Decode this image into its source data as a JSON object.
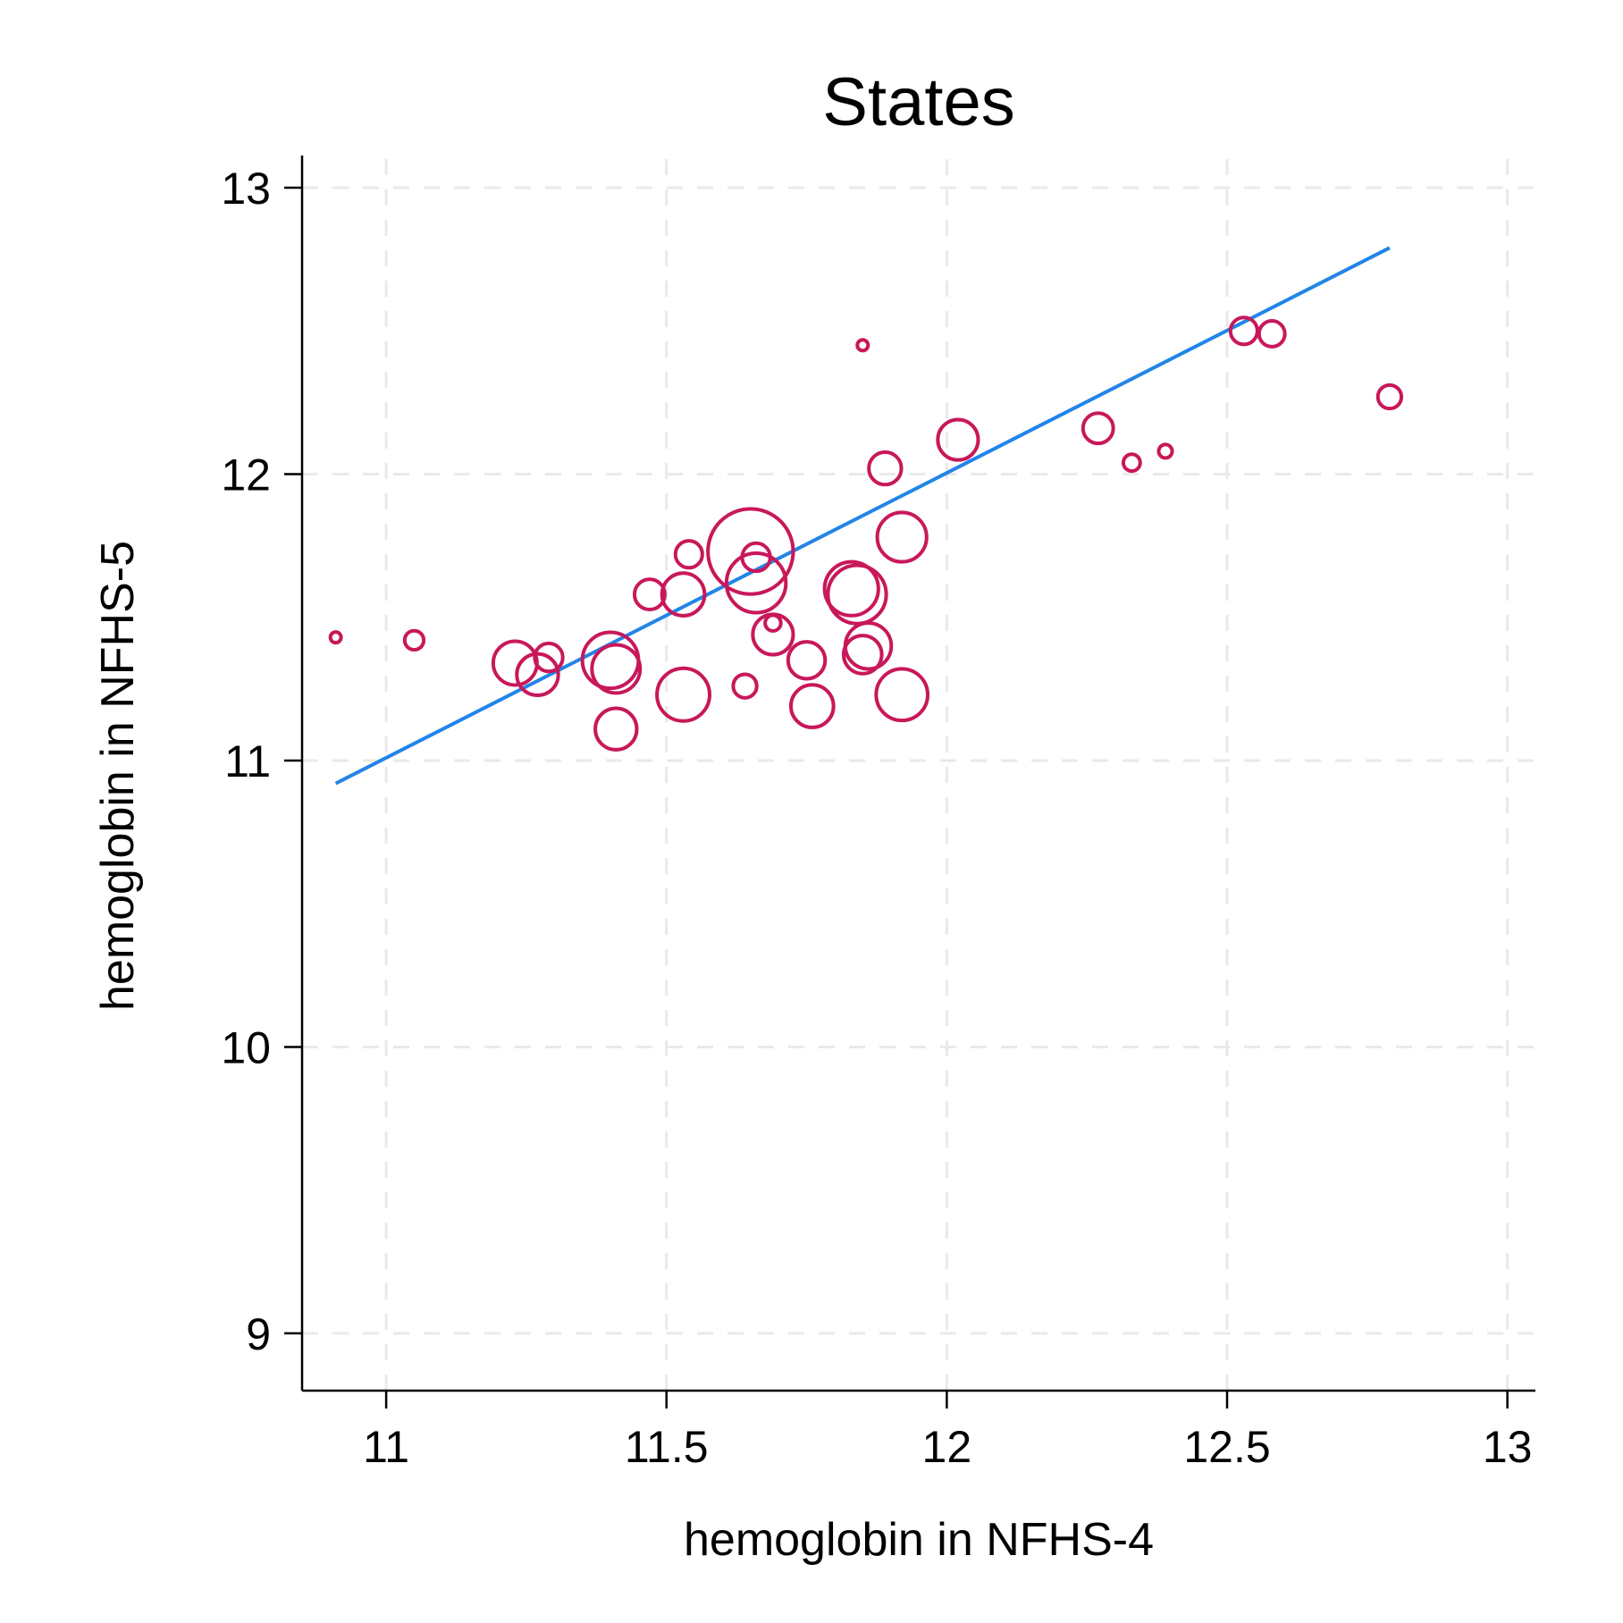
{
  "chart_data": {
    "type": "scatter",
    "title": "States",
    "xlabel": "hemoglobin in NFHS-4",
    "ylabel": "hemoglobin in NFHS-5",
    "xlim": [
      10.85,
      13.05
    ],
    "ylim": [
      8.8,
      13.1
    ],
    "xticks": [
      11,
      11.5,
      12,
      12.5,
      13
    ],
    "xtick_labels": [
      "11",
      "11.5",
      "12",
      "12.5",
      "13"
    ],
    "yticks": [
      9,
      10,
      11,
      12,
      13
    ],
    "ytick_labels": [
      "9",
      "10",
      "11",
      "12",
      "13"
    ],
    "grid": true,
    "marker": "hollow circle, size weighted",
    "colors": {
      "points": "#c8185a",
      "fit_line": "#2185e8",
      "grid": "#e9e9e9",
      "axis": "#000000"
    },
    "points": [
      {
        "x": 10.91,
        "y": 11.43,
        "r": 0.009
      },
      {
        "x": 11.05,
        "y": 11.42,
        "r": 0.017
      },
      {
        "x": 11.23,
        "y": 11.34,
        "r": 0.039
      },
      {
        "x": 11.27,
        "y": 11.3,
        "r": 0.037
      },
      {
        "x": 11.29,
        "y": 11.36,
        "r": 0.025
      },
      {
        "x": 11.4,
        "y": 11.35,
        "r": 0.05
      },
      {
        "x": 11.41,
        "y": 11.32,
        "r": 0.043
      },
      {
        "x": 11.41,
        "y": 11.11,
        "r": 0.037
      },
      {
        "x": 11.47,
        "y": 11.58,
        "r": 0.027
      },
      {
        "x": 11.53,
        "y": 11.58,
        "r": 0.038
      },
      {
        "x": 11.54,
        "y": 11.72,
        "r": 0.024
      },
      {
        "x": 11.53,
        "y": 11.23,
        "r": 0.047
      },
      {
        "x": 11.64,
        "y": 11.26,
        "r": 0.021
      },
      {
        "x": 11.65,
        "y": 11.73,
        "r": 0.076
      },
      {
        "x": 11.66,
        "y": 11.62,
        "r": 0.053
      },
      {
        "x": 11.66,
        "y": 11.71,
        "r": 0.025
      },
      {
        "x": 11.69,
        "y": 11.48,
        "r": 0.014
      },
      {
        "x": 11.69,
        "y": 11.44,
        "r": 0.036
      },
      {
        "x": 11.75,
        "y": 11.35,
        "r": 0.033
      },
      {
        "x": 11.76,
        "y": 11.19,
        "r": 0.038
      },
      {
        "x": 11.83,
        "y": 11.6,
        "r": 0.048
      },
      {
        "x": 11.84,
        "y": 11.58,
        "r": 0.052
      },
      {
        "x": 11.85,
        "y": 12.45,
        "r": 0.009
      },
      {
        "x": 11.85,
        "y": 11.37,
        "r": 0.034
      },
      {
        "x": 11.86,
        "y": 11.4,
        "r": 0.041
      },
      {
        "x": 11.89,
        "y": 12.02,
        "r": 0.029
      },
      {
        "x": 11.92,
        "y": 11.78,
        "r": 0.044
      },
      {
        "x": 11.92,
        "y": 11.23,
        "r": 0.046
      },
      {
        "x": 12.02,
        "y": 12.12,
        "r": 0.036
      },
      {
        "x": 12.27,
        "y": 12.16,
        "r": 0.027
      },
      {
        "x": 12.33,
        "y": 12.04,
        "r": 0.015
      },
      {
        "x": 12.39,
        "y": 12.08,
        "r": 0.012
      },
      {
        "x": 12.53,
        "y": 12.5,
        "r": 0.024
      },
      {
        "x": 12.58,
        "y": 12.49,
        "r": 0.023
      },
      {
        "x": 12.79,
        "y": 12.27,
        "r": 0.021
      }
    ],
    "fit_line": {
      "x": [
        10.91,
        12.79
      ],
      "y": [
        10.92,
        12.79
      ]
    }
  }
}
